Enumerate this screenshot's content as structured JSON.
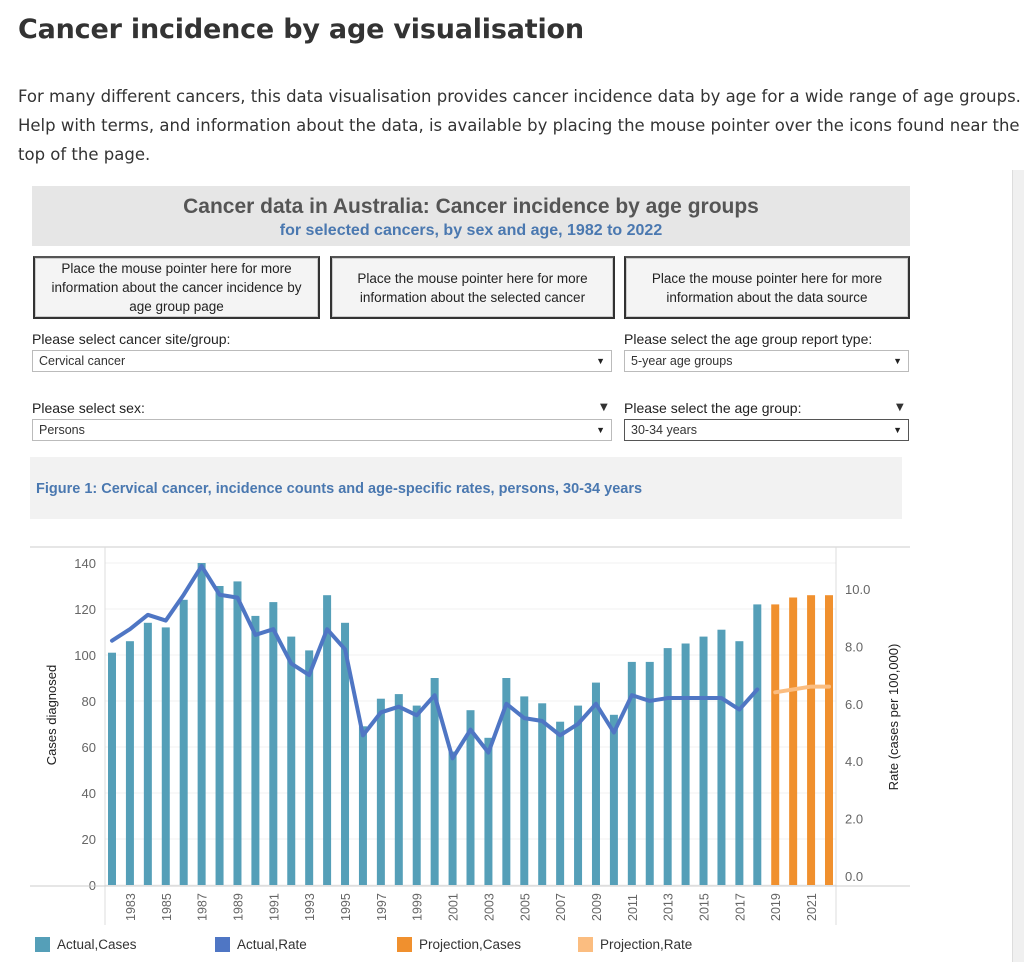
{
  "page": {
    "title": "Cancer incidence by age visualisation",
    "intro": "For many different cancers, this data visualisation provides cancer incidence data by age for a wide range of age groups. Help with terms, and information about the data, is available by placing the mouse pointer over the icons found near the top of the page."
  },
  "dashboard": {
    "title": "Cancer data in Australia: Cancer incidence by age groups",
    "subtitle": "for selected cancers, by sex and age, 1982 to 2022",
    "info_buttons": [
      "Place the mouse pointer here for more information about the cancer incidence by age group page",
      "Place the mouse pointer here for more information about the selected cancer",
      "Place the mouse pointer here for more information about the data source"
    ],
    "filters": {
      "cancer": {
        "label": "Please select cancer site/group:",
        "value": "Cervical cancer"
      },
      "report_type": {
        "label": "Please select the age group report type:",
        "value": "5-year age groups"
      },
      "sex": {
        "label": "Please select sex:",
        "value": "Persons"
      },
      "age_group": {
        "label": "Please select the age group:",
        "value": "30-34 years"
      }
    },
    "figure_title": "Figure 1: Cervical cancer, incidence counts and age-specific rates, persons, 30-34 years"
  },
  "colors": {
    "actual_cases": "#559fb8",
    "actual_rate": "#4f76c4",
    "projection_cases": "#f0902e",
    "projection_rate": "#fbbd80"
  },
  "chart_data": {
    "type": "bar",
    "years": [
      1982,
      1983,
      1984,
      1985,
      1986,
      1987,
      1988,
      1989,
      1990,
      1991,
      1992,
      1993,
      1994,
      1995,
      1996,
      1997,
      1998,
      1999,
      2000,
      2001,
      2002,
      2003,
      2004,
      2005,
      2006,
      2007,
      2008,
      2009,
      2010,
      2011,
      2012,
      2013,
      2014,
      2015,
      2016,
      2017,
      2018,
      2019,
      2020,
      2021,
      2022
    ],
    "x_tick_labels": [
      "1983",
      "1985",
      "1987",
      "1989",
      "1991",
      "1993",
      "1995",
      "1997",
      "1999",
      "2001",
      "2003",
      "2005",
      "2007",
      "2009",
      "2011",
      "2013",
      "2015",
      "2017",
      "2019",
      "2021"
    ],
    "series": [
      {
        "name": "Actual,Cases",
        "type": "bar",
        "axis": "left",
        "years": [
          1982,
          2018
        ],
        "values": [
          101,
          106,
          114,
          112,
          124,
          140,
          130,
          132,
          117,
          123,
          108,
          102,
          126,
          114,
          69,
          81,
          83,
          78,
          90,
          58,
          76,
          64,
          90,
          82,
          79,
          71,
          78,
          88,
          74,
          97,
          97,
          103,
          105,
          108,
          111,
          106,
          122
        ]
      },
      {
        "name": "Actual,Rate",
        "type": "line",
        "axis": "right",
        "years": [
          1982,
          2018
        ],
        "values": [
          8.2,
          8.6,
          9.1,
          8.9,
          9.8,
          10.8,
          9.8,
          9.7,
          8.4,
          8.6,
          7.4,
          7.0,
          8.6,
          7.9,
          4.9,
          5.7,
          5.9,
          5.6,
          6.3,
          4.1,
          5.1,
          4.3,
          6.0,
          5.5,
          5.4,
          4.9,
          5.3,
          6.0,
          5.0,
          6.3,
          6.1,
          6.2,
          6.2,
          6.2,
          6.2,
          5.8,
          6.5
        ]
      },
      {
        "name": "Projection,Cases",
        "type": "bar",
        "axis": "left",
        "years": [
          2019,
          2022
        ],
        "values": [
          122,
          125,
          126,
          126
        ]
      },
      {
        "name": "Projection,Rate",
        "type": "line",
        "axis": "right",
        "years": [
          2019,
          2022
        ],
        "values": [
          6.4,
          6.5,
          6.6,
          6.6
        ]
      }
    ],
    "ylabel": "Cases diagnosed",
    "ylim": [
      0,
      140
    ],
    "yticks": [
      "0",
      "20",
      "40",
      "60",
      "80",
      "100",
      "120",
      "140"
    ],
    "y2label": "Rate (cases per 100,000)",
    "y2lim": [
      0,
      10
    ],
    "y2ticks": [
      "0.0",
      "2.0",
      "4.0",
      "6.0",
      "8.0",
      "10.0"
    ],
    "legend_position": "bottom",
    "grid": true
  }
}
